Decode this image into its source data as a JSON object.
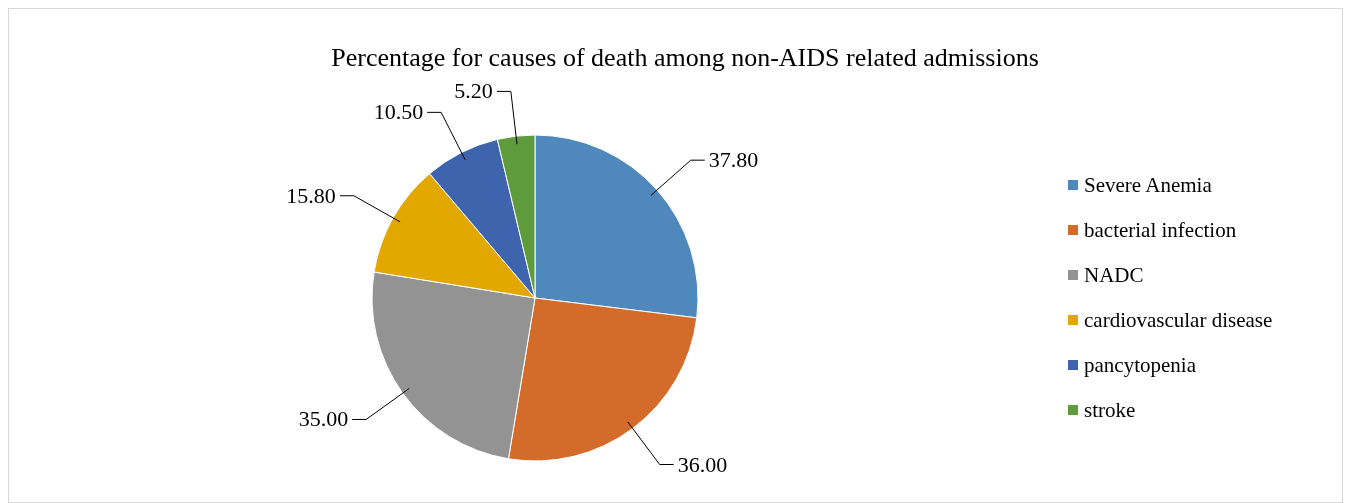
{
  "chart_data": {
    "type": "pie",
    "title": "Percentage for causes of death among non-AIDS related admissions",
    "categories": [
      "Severe Anemia",
      "bacterial infection",
      "NADC",
      "cardiovascular disease",
      "pancytopenia",
      "stroke"
    ],
    "values": [
      37.8,
      36.0,
      35.0,
      15.8,
      10.5,
      5.2
    ],
    "value_labels": [
      "37.80",
      "36.00",
      "35.00",
      "15.80",
      "10.50",
      "5.20"
    ],
    "colors": [
      "#4f88bd",
      "#d36c2a",
      "#939393",
      "#e3a800",
      "#3d64ad",
      "#5e9b3c"
    ],
    "legend": "right"
  }
}
